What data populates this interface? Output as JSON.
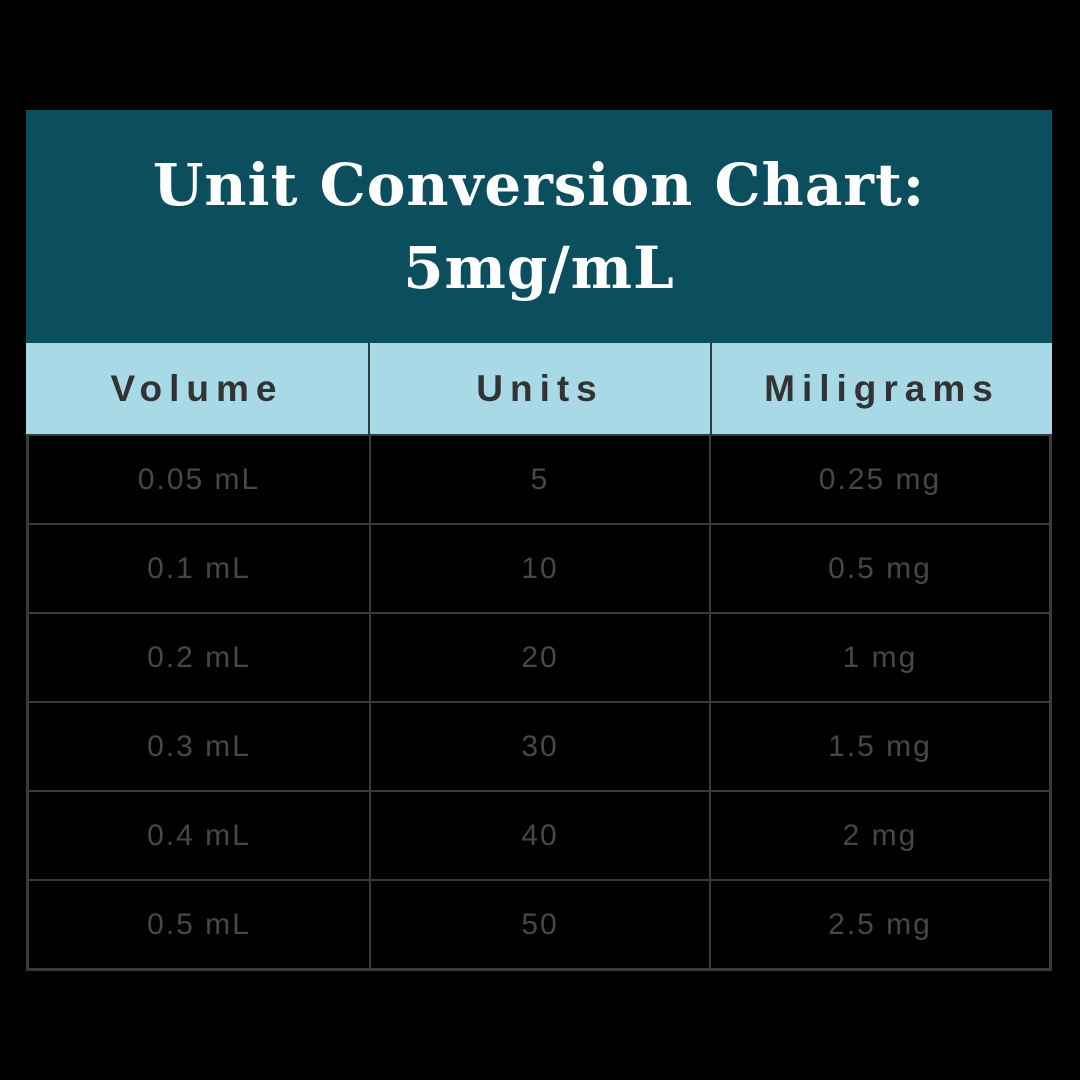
{
  "title": {
    "line1": "Unit Conversion Chart:",
    "line2": "5mg/mL"
  },
  "colors": {
    "canvas_bg": "#000000",
    "title_block_bg": "#0b4e5e",
    "title_text": "#ffffff",
    "header_row_bg": "#a7dae6",
    "header_text": "#333333",
    "row_bg": "#000000",
    "row_text": "#474747",
    "grid_border": "#3a3a3a"
  },
  "chart_data": {
    "type": "table",
    "title": "Unit Conversion Chart: 5mg/mL",
    "columns": [
      "Volume",
      "Units",
      "Miligrams"
    ],
    "rows": [
      [
        "0.05 mL",
        "5",
        "0.25 mg"
      ],
      [
        "0.1 mL",
        "10",
        "0.5 mg"
      ],
      [
        "0.2 mL",
        "20",
        "1 mg"
      ],
      [
        "0.3 mL",
        "30",
        "1.5 mg"
      ],
      [
        "0.4 mL",
        "40",
        "2 mg"
      ],
      [
        "0.5 mL",
        "50",
        "2.5 mg"
      ]
    ]
  }
}
